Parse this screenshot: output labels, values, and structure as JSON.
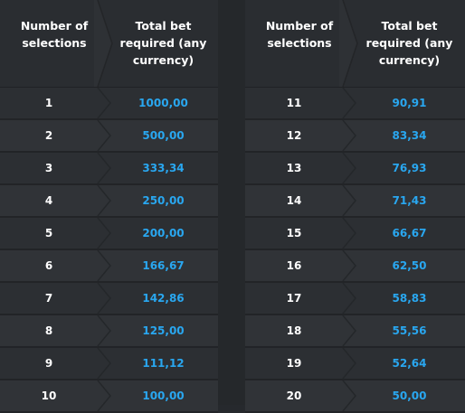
{
  "headers": {
    "col1_line1": "Number of",
    "col1_line2": "selections",
    "col2_line1": "Total bet",
    "col2_line2": "required (any",
    "col2_line3": "currency)"
  },
  "left_rows": [
    {
      "n": "1",
      "v": "1000,00"
    },
    {
      "n": "2",
      "v": "500,00"
    },
    {
      "n": "3",
      "v": "333,34"
    },
    {
      "n": "4",
      "v": "250,00"
    },
    {
      "n": "5",
      "v": "200,00"
    },
    {
      "n": "6",
      "v": "166,67"
    },
    {
      "n": "7",
      "v": "142,86"
    },
    {
      "n": "8",
      "v": "125,00"
    },
    {
      "n": "9",
      "v": "111,12"
    },
    {
      "n": "10",
      "v": "100,00"
    }
  ],
  "right_rows": [
    {
      "n": "11",
      "v": "90,91"
    },
    {
      "n": "12",
      "v": "83,34"
    },
    {
      "n": "13",
      "v": "76,93"
    },
    {
      "n": "14",
      "v": "71,43"
    },
    {
      "n": "15",
      "v": "66,67"
    },
    {
      "n": "16",
      "v": "62,50"
    },
    {
      "n": "17",
      "v": "58,83"
    },
    {
      "n": "18",
      "v": "55,56"
    },
    {
      "n": "19",
      "v": "52,64"
    },
    {
      "n": "20",
      "v": "50,00"
    }
  ],
  "colors": {
    "value_blue": "#29a7f0",
    "text_white": "#ffffff",
    "background": "#2b2e32"
  }
}
